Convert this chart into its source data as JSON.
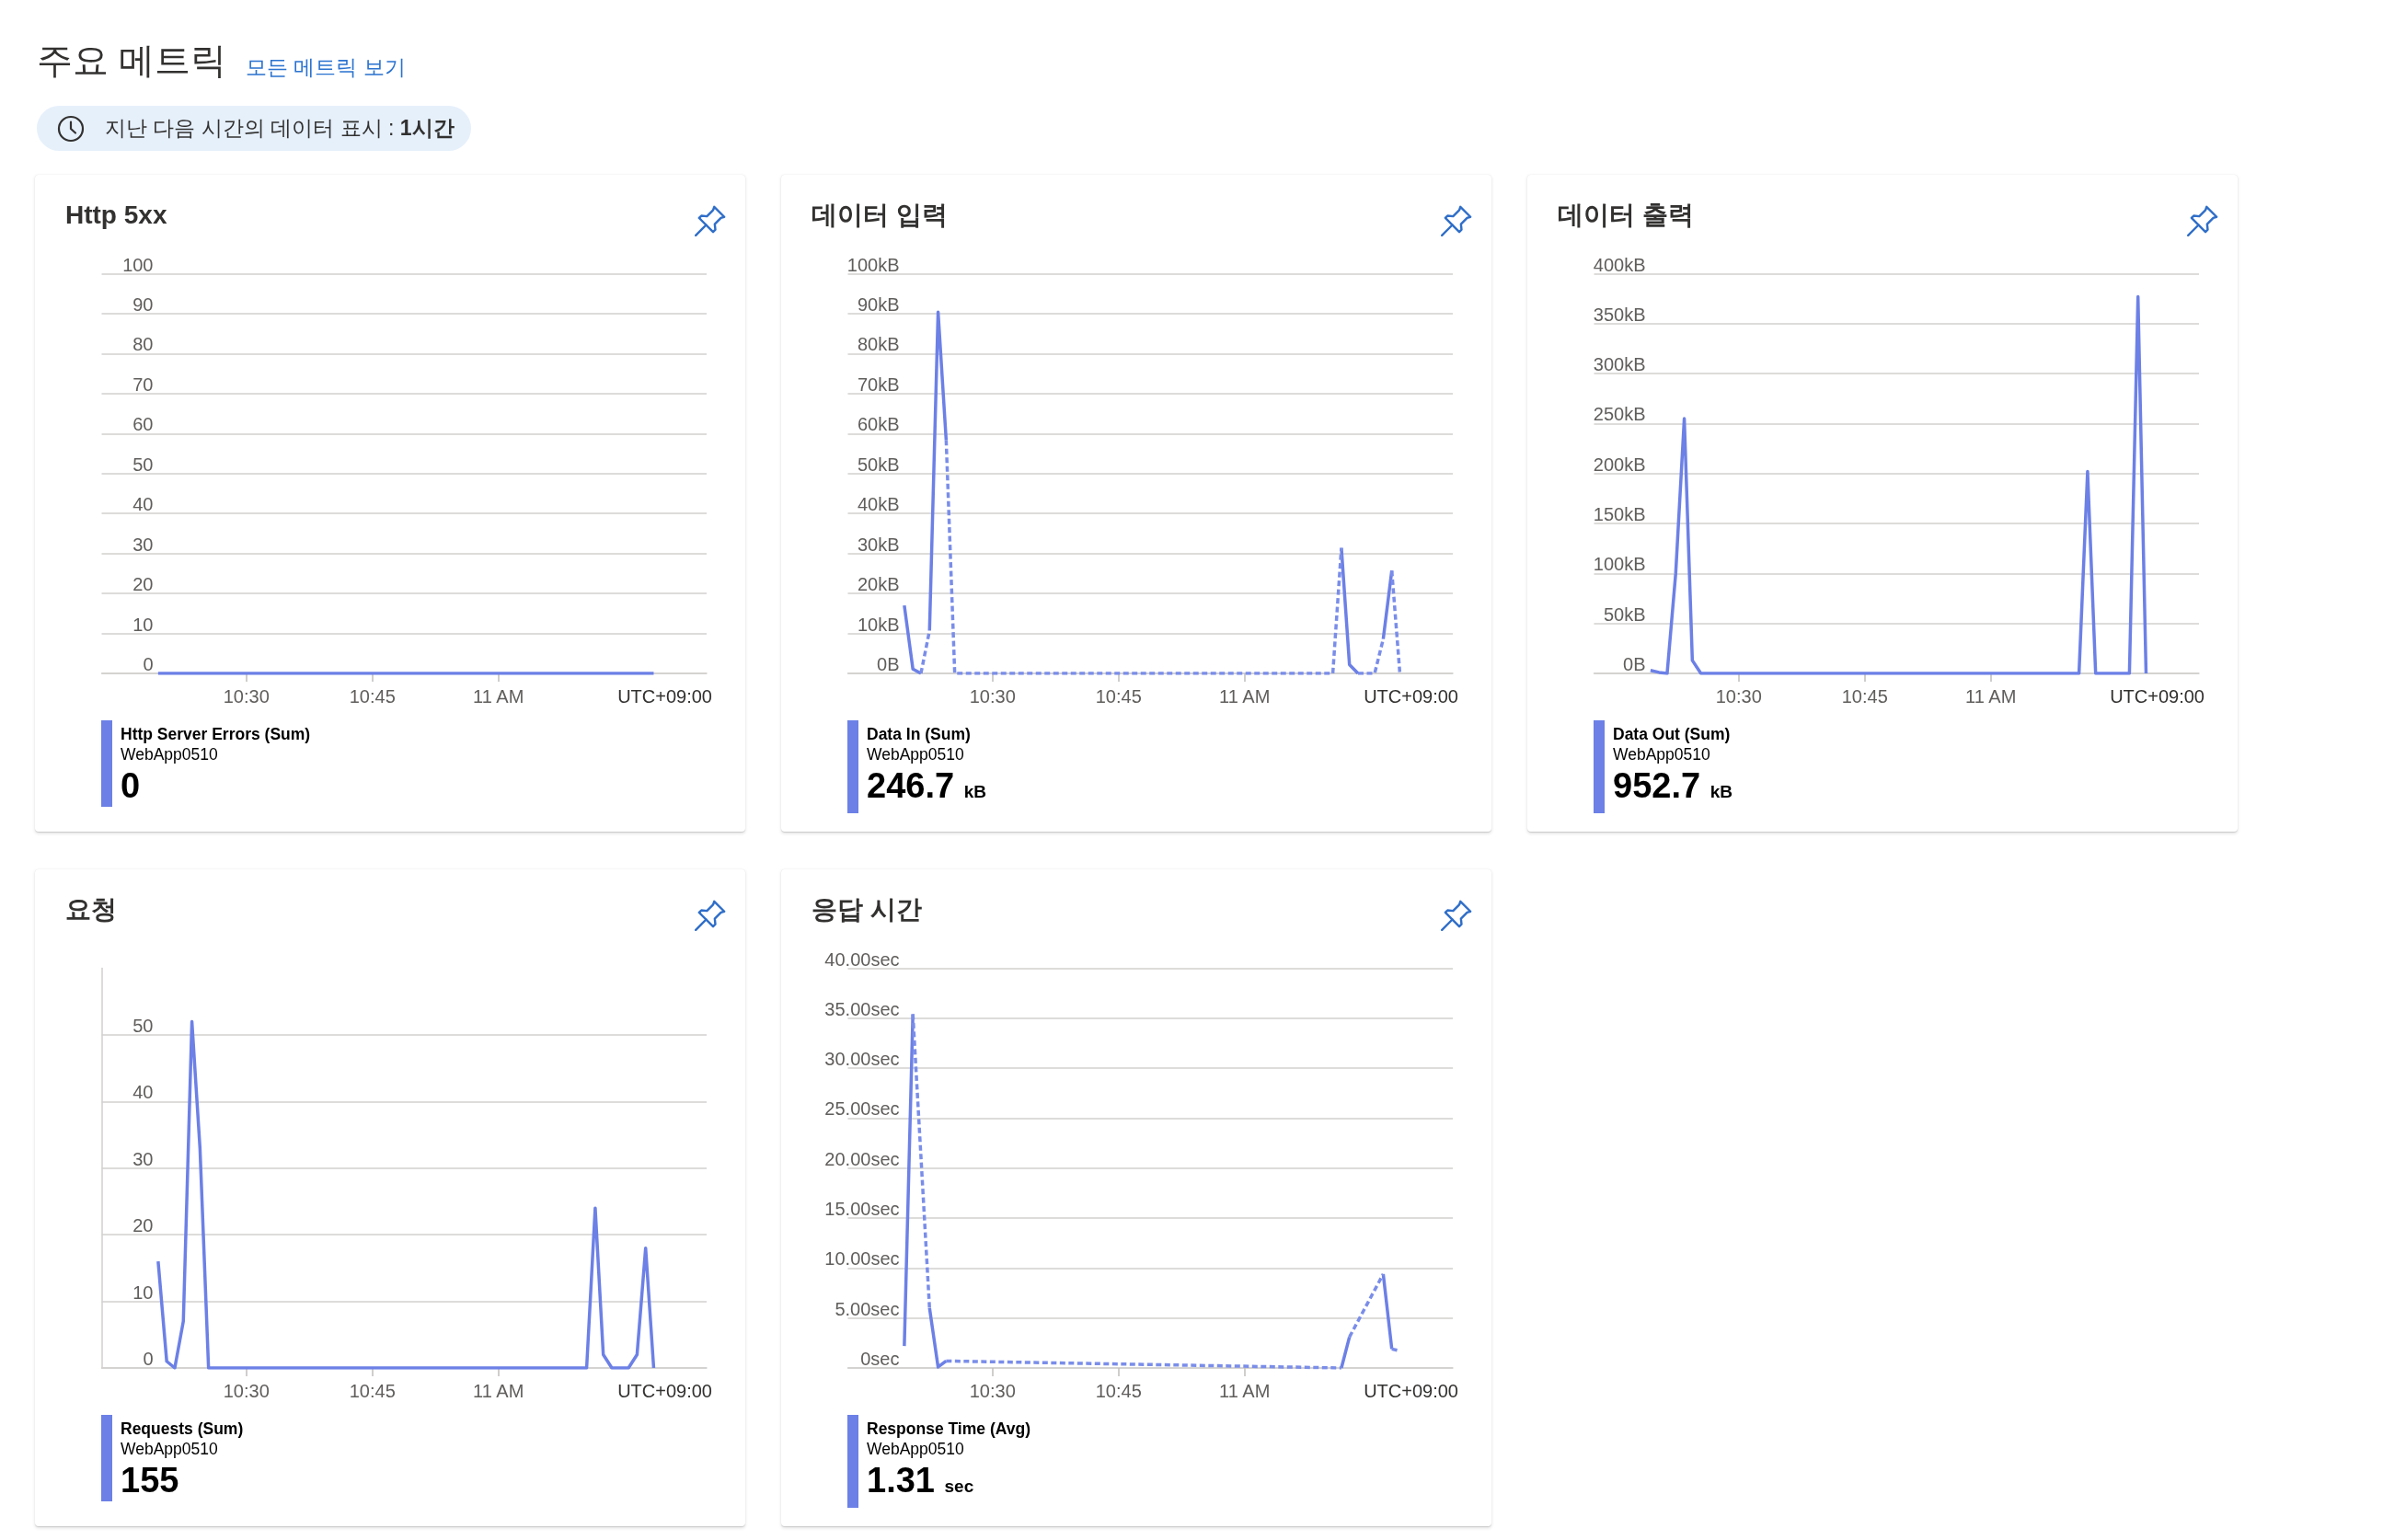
{
  "chart_data": [
    {
      "type": "other",
      "title": "주요 메트릭",
      "annotations": [
        "모든 메트릭 보기",
        "지난 다음 시간의 데이터 표시 : 1시간"
      ]
    },
    {
      "type": "line",
      "title": "Http 5xx",
      "xlabel": "UTC+09:00",
      "xlim": [
        10.213,
        11.413
      ],
      "xticks": [
        {
          "value": 10.5,
          "label": "10:30"
        },
        {
          "value": 10.75,
          "label": "10:45"
        },
        {
          "value": 11,
          "label": "11 AM"
        }
      ],
      "ylim": [
        0,
        100
      ],
      "yticks": [
        0,
        10,
        20,
        30,
        40,
        50,
        60,
        70,
        80,
        90,
        100
      ],
      "grid": "y",
      "legend": "bottom left",
      "marker": "none",
      "line_style": "solid",
      "series": [
        {
          "name": "Http Server Errors (Sum)",
          "color": "#6c80e6",
          "x": [
            10.325,
            11.308
          ],
          "values": [
            0,
            0
          ]
        }
      ],
      "annotations": [
        "WebApp0510",
        "0"
      ]
    },
    {
      "type": "line",
      "title": "데이터 입력",
      "xlabel": "UTC+09:00",
      "xlim": [
        10.213,
        11.413
      ],
      "xticks": [
        {
          "value": 10.5,
          "label": "10:30"
        },
        {
          "value": 10.75,
          "label": "10:45"
        },
        {
          "value": 11,
          "label": "11 AM"
        }
      ],
      "ylim": [
        0,
        100
      ],
      "yticks": [
        {
          "value": 0,
          "label": "0B"
        },
        {
          "value": 10,
          "label": "10kB"
        },
        {
          "value": 20,
          "label": "20kB"
        },
        {
          "value": 30,
          "label": "30kB"
        },
        {
          "value": 40,
          "label": "40kB"
        },
        {
          "value": 50,
          "label": "50kB"
        },
        {
          "value": 60,
          "label": "60kB"
        },
        {
          "value": 70,
          "label": "70kB"
        },
        {
          "value": 80,
          "label": "80kB"
        },
        {
          "value": 90,
          "label": "90kB"
        },
        {
          "value": 100,
          "label": "100kB"
        }
      ],
      "grid": "y",
      "legend": "bottom left",
      "marker": "none",
      "line_style": "solid",
      "series": [
        {
          "name": "Data In (Sum)",
          "color": "#6c80e6",
          "x": [
            10.325,
            10.342,
            10.358,
            10.367,
            10.375,
            10.392,
            10.408,
            10.8,
            11.192,
            11.208,
            11.225,
            11.25,
            11.275,
            11.292
          ],
          "values": [
            17,
            1.1,
            0,
            null,
            10.7,
            90.4,
            58.4,
            null,
            31.4,
            2.2,
            0,
            null,
            8.6,
            25.7
          ]
        },
        {
          "color": "#7a8de9",
          "line_style": "dotted",
          "x": [
            10.358,
            10.375,
            10.392,
            10.408,
            10.425,
            11.175,
            11.192,
            11.2,
            11.225,
            11.258,
            11.275,
            11.283,
            11.292,
            11.308
          ],
          "values": [
            0,
            10.7,
            null,
            58.4,
            0,
            0,
            31.4,
            null,
            0,
            0,
            8.6,
            null,
            25.7,
            0
          ]
        }
      ],
      "annotations": [
        "WebApp0510",
        "246.7 kB"
      ]
    },
    {
      "type": "line",
      "title": "데이터 출력",
      "xlabel": "UTC+09:00",
      "xlim": [
        10.213,
        11.413
      ],
      "xticks": [
        {
          "value": 10.5,
          "label": "10:30"
        },
        {
          "value": 10.75,
          "label": "10:45"
        },
        {
          "value": 11,
          "label": "11 AM"
        }
      ],
      "ylim": [
        0,
        400
      ],
      "yticks": [
        {
          "value": 0,
          "label": "0B"
        },
        {
          "value": 50,
          "label": "50kB"
        },
        {
          "value": 100,
          "label": "100kB"
        },
        {
          "value": 150,
          "label": "150kB"
        },
        {
          "value": 200,
          "label": "200kB"
        },
        {
          "value": 250,
          "label": "250kB"
        },
        {
          "value": 300,
          "label": "300kB"
        },
        {
          "value": 350,
          "label": "350kB"
        },
        {
          "value": 400,
          "label": "400kB"
        }
      ],
      "grid": "y",
      "legend": "bottom left",
      "marker": "none",
      "line_style": "solid",
      "series": [
        {
          "name": "Data Out (Sum)",
          "color": "#6c80e6",
          "x": [
            10.325,
            10.342,
            10.358,
            10.375,
            10.392,
            10.408,
            10.425,
            11.175,
            11.192,
            11.208,
            11.275,
            11.292,
            11.308
          ],
          "values": [
            3,
            1,
            0,
            100,
            255,
            13,
            0,
            0,
            202,
            0,
            0,
            377,
            0
          ]
        }
      ],
      "annotations": [
        "WebApp0510",
        "952.7 kB"
      ]
    },
    {
      "type": "line",
      "title": "요청",
      "xlabel": "UTC+09:00",
      "xlim": [
        10.213,
        11.413
      ],
      "xticks": [
        {
          "value": 10.5,
          "label": "10:30"
        },
        {
          "value": 10.75,
          "label": "10:45"
        },
        {
          "value": 11,
          "label": "11 AM"
        }
      ],
      "ylim": [
        0,
        60
      ],
      "yticks": [
        0,
        10,
        20,
        30,
        40,
        50
      ],
      "grid": "y",
      "legend": "bottom left",
      "marker": "none",
      "line_style": "solid",
      "series": [
        {
          "name": "Requests (Sum)",
          "color": "#6c80e6",
          "x": [
            10.325,
            10.342,
            10.358,
            10.375,
            10.392,
            10.408,
            10.425,
            11.175,
            11.192,
            11.208,
            11.225,
            11.258,
            11.275,
            11.292,
            11.308
          ],
          "values": [
            16,
            1,
            0,
            7,
            52,
            33,
            0,
            0,
            24,
            2,
            0,
            0,
            2,
            18,
            0
          ]
        }
      ],
      "annotations": [
        "WebApp0510",
        "155"
      ]
    },
    {
      "type": "line",
      "title": "응답 시간",
      "xlabel": "UTC+09:00",
      "xlim": [
        10.213,
        11.413
      ],
      "xticks": [
        {
          "value": 10.5,
          "label": "10:30"
        },
        {
          "value": 10.75,
          "label": "10:45"
        },
        {
          "value": 11,
          "label": "11 AM"
        }
      ],
      "ylim": [
        0,
        40
      ],
      "yticks": [
        {
          "value": 0,
          "label": "0sec"
        },
        {
          "value": 5,
          "label": "5.00sec"
        },
        {
          "value": 10,
          "label": "10.00sec"
        },
        {
          "value": 15,
          "label": "15.00sec"
        },
        {
          "value": 20,
          "label": "20.00sec"
        },
        {
          "value": 25,
          "label": "25.00sec"
        },
        {
          "value": 30,
          "label": "30.00sec"
        },
        {
          "value": 35,
          "label": "35.00sec"
        },
        {
          "value": 40,
          "label": "40.00sec"
        }
      ],
      "grid": "y",
      "legend": "bottom left",
      "marker": "none",
      "line_style": "solid",
      "series": [
        {
          "name": "Response Time (Avg)",
          "color": "#6c80e6",
          "x": [
            10.325,
            10.342,
            10.358,
            10.375,
            10.392,
            10.408,
            10.8,
            11.192,
            11.208,
            11.242,
            11.275,
            11.292
          ],
          "values": [
            2.2,
            35.4,
            null,
            6,
            0.1,
            0.7,
            null,
            0,
            3.1,
            null,
            9.4,
            1.9
          ]
        },
        {
          "color": "#7a8de9",
          "line_style": "dotted",
          "x": [
            10.342,
            10.375,
            10.392,
            10.408,
            11.192,
            11.2,
            11.208,
            11.275,
            11.283,
            11.292,
            11.308
          ],
          "values": [
            35.4,
            6,
            null,
            0.7,
            0,
            null,
            3.1,
            9.4,
            null,
            1.9,
            1.7
          ]
        }
      ],
      "annotations": [
        "WebApp0510",
        "1.31 sec"
      ]
    }
  ]
}
